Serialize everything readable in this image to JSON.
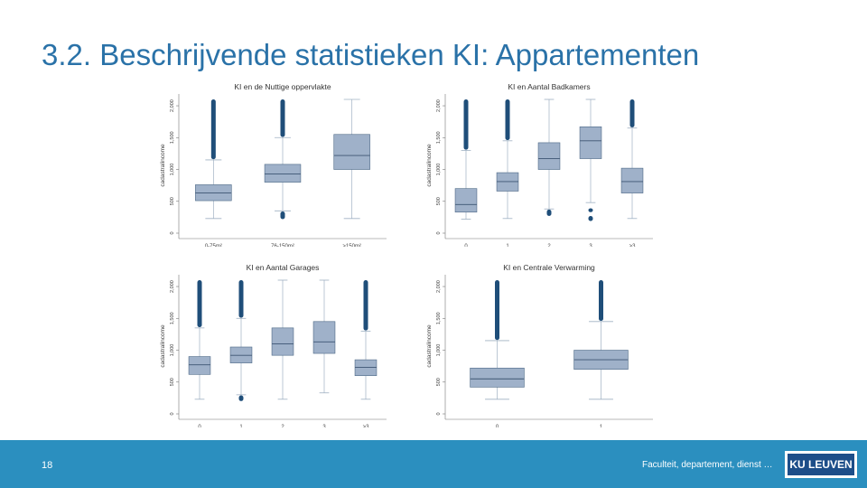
{
  "slide": {
    "title": "3.2. Beschrijvende statistieken KI: Appartementen",
    "number": "18",
    "footer_text": "Faculteit, departement, dienst …",
    "logo_text": "KU LEUVEN"
  },
  "colors": {
    "title": "#2a72a8",
    "footer_bar": "#2b8fbf",
    "logo": "#1d4e89",
    "box_fill": "#9fb1c9",
    "box_stroke": "#4b6785",
    "outlier": "#1f4e79",
    "whisker": "#9fb0c2"
  },
  "chart_data": [
    {
      "type": "box",
      "title": "KI en de Nuttige oppervlakte",
      "ylabel": "cadastralincome",
      "ylim": [
        0,
        2000
      ],
      "yticks": [
        "0",
        "500",
        "1,000",
        "1,500",
        "2,000"
      ],
      "categories": [
        "0-75m²",
        "76-150m²",
        ">150m²"
      ],
      "boxes": [
        {
          "wlo": 230,
          "q1": 510,
          "med": 630,
          "q3": 760,
          "whi": 1150,
          "outliers": [
            [
              1160,
              2100
            ]
          ]
        },
        {
          "wlo": 350,
          "q1": 800,
          "med": 930,
          "q3": 1080,
          "whi": 1500,
          "outliers": [
            [
              1510,
              2100
            ],
            [
              220,
              340
            ]
          ]
        },
        {
          "wlo": 230,
          "q1": 1000,
          "med": 1220,
          "q3": 1550,
          "whi": 2100,
          "outliers": []
        }
      ]
    },
    {
      "type": "box",
      "title": "KI en Aantal Badkamers",
      "ylabel": "cadastralincome",
      "ylim": [
        0,
        2000
      ],
      "yticks": [
        "0",
        "500",
        "1,000",
        "1,500",
        "2,000"
      ],
      "categories": [
        "0",
        "1",
        "2",
        "3",
        ">3"
      ],
      "boxes": [
        {
          "wlo": 220,
          "q1": 330,
          "med": 450,
          "q3": 700,
          "whi": 1300,
          "outliers": [
            [
              1310,
              2100
            ]
          ]
        },
        {
          "wlo": 230,
          "q1": 660,
          "med": 810,
          "q3": 950,
          "whi": 1450,
          "outliers": [
            [
              1460,
              2100
            ]
          ]
        },
        {
          "wlo": 380,
          "q1": 1000,
          "med": 1170,
          "q3": 1420,
          "whi": 2100,
          "outliers": [
            [
              270,
              370
            ]
          ]
        },
        {
          "wlo": 480,
          "q1": 1170,
          "med": 1450,
          "q3": 1670,
          "whi": 2100,
          "outliers": [
            [
              190,
              270
            ],
            [
              330,
              390
            ]
          ]
        },
        {
          "wlo": 230,
          "q1": 630,
          "med": 810,
          "q3": 1020,
          "whi": 1650,
          "outliers": [
            [
              1660,
              2100
            ]
          ]
        }
      ]
    },
    {
      "type": "box",
      "title": "KI en Aantal Garages",
      "ylabel": "cadastralincome",
      "ylim": [
        0,
        2000
      ],
      "yticks": [
        "0",
        "500",
        "1,000",
        "1,500",
        "2,000"
      ],
      "categories": [
        "0",
        "1",
        "2",
        "3",
        ">3"
      ],
      "boxes": [
        {
          "wlo": 230,
          "q1": 620,
          "med": 770,
          "q3": 900,
          "whi": 1350,
          "outliers": [
            [
              1360,
              2100
            ]
          ]
        },
        {
          "wlo": 300,
          "q1": 800,
          "med": 920,
          "q3": 1050,
          "whi": 1500,
          "outliers": [
            [
              1510,
              2100
            ],
            [
              200,
              290
            ]
          ]
        },
        {
          "wlo": 230,
          "q1": 920,
          "med": 1100,
          "q3": 1350,
          "whi": 2100,
          "outliers": []
        },
        {
          "wlo": 330,
          "q1": 950,
          "med": 1130,
          "q3": 1450,
          "whi": 2100,
          "outliers": []
        },
        {
          "wlo": 230,
          "q1": 600,
          "med": 730,
          "q3": 850,
          "whi": 1300,
          "outliers": [
            [
              1310,
              2100
            ]
          ]
        }
      ]
    },
    {
      "type": "box",
      "title": "KI en Centrale Verwarming",
      "ylabel": "cadastralincome",
      "ylim": [
        0,
        2000
      ],
      "yticks": [
        "0",
        "500",
        "1,000",
        "1,500",
        "2,000"
      ],
      "categories": [
        "0",
        "1"
      ],
      "boxes": [
        {
          "wlo": 230,
          "q1": 420,
          "med": 550,
          "q3": 720,
          "whi": 1150,
          "outliers": [
            [
              1160,
              2100
            ]
          ]
        },
        {
          "wlo": 230,
          "q1": 700,
          "med": 850,
          "q3": 1000,
          "whi": 1450,
          "outliers": [
            [
              1460,
              2100
            ]
          ]
        }
      ]
    }
  ]
}
